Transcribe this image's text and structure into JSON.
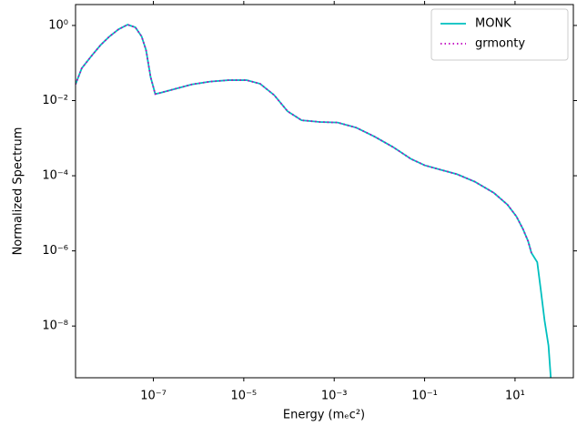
{
  "chart_data": {
    "type": "line",
    "xlabel": "Energy (mₑc²)",
    "ylabel": "Normalized Spectrum",
    "xscale": "log",
    "yscale": "log",
    "legend": "upper right",
    "xlim": [
      1.9e-09,
      195
    ],
    "ylim": [
      4.2e-10,
      3.6
    ],
    "xticks": [
      {
        "value": 1e-07,
        "label": "10⁻⁷"
      },
      {
        "value": 1e-05,
        "label": "10⁻⁵"
      },
      {
        "value": 0.001,
        "label": "10⁻³"
      },
      {
        "value": 0.1,
        "label": "10⁻¹"
      },
      {
        "value": 10,
        "label": "10¹"
      }
    ],
    "yticks": [
      {
        "value": 1,
        "label": "10⁰"
      },
      {
        "value": 0.01,
        "label": "10⁻²"
      },
      {
        "value": 0.0001,
        "label": "10⁻⁴"
      },
      {
        "value": 1e-06,
        "label": "10⁻⁶"
      },
      {
        "value": 1e-08,
        "label": "10⁻⁸"
      }
    ],
    "x": [
      1.9e-09,
      2.6e-09,
      4.2e-09,
      6.8e-09,
      1.07e-08,
      1.7e-08,
      2.7e-08,
      4e-08,
      5.5e-08,
      6.9e-08,
      8.7e-08,
      1.1e-07,
      1.4e-07,
      2.8e-07,
      7.1e-07,
      1.8e-06,
      4.6e-06,
      1.15e-05,
      2.3e-05,
      4.7e-05,
      9.3e-05,
      0.00019,
      0.00048,
      0.0012,
      0.0031,
      0.0078,
      0.02,
      0.05,
      0.1,
      0.2,
      0.52,
      1.3,
      3.4,
      6.8,
      10.7,
      15,
      19.5,
      23,
      31,
      37,
      45,
      55,
      63
    ],
    "series": [
      {
        "name": "MONK",
        "color": "#00bfbf",
        "style": "solid",
        "values": [
          0.027,
          0.072,
          0.15,
          0.3,
          0.51,
          0.79,
          1.05,
          0.89,
          0.51,
          0.22,
          0.042,
          0.015,
          0.016,
          0.02,
          0.027,
          0.032,
          0.035,
          0.035,
          0.028,
          0.014,
          0.0052,
          0.003,
          0.0027,
          0.0026,
          0.0019,
          0.0011,
          0.00058,
          0.00028,
          0.00019,
          0.00015,
          0.00011,
          6.9e-05,
          3.5e-05,
          1.7e-05,
          8.3e-06,
          3.8e-06,
          1.8e-06,
          8.9e-07,
          5e-07,
          9.5e-08,
          1.4e-08,
          3e-09,
          3e-10
        ]
      },
      {
        "name": "grmonty",
        "color": "#bf00bf",
        "style": "dotted",
        "values": [
          0.027,
          0.072,
          0.15,
          0.3,
          0.51,
          0.79,
          1.05,
          0.89,
          0.51,
          0.22,
          0.042,
          0.015,
          0.016,
          0.02,
          0.027,
          0.032,
          0.035,
          0.035,
          0.028,
          0.014,
          0.0052,
          0.003,
          0.0027,
          0.0026,
          0.0019,
          0.0011,
          0.00058,
          0.00028,
          0.00019,
          0.00015,
          0.00011,
          6.9e-05,
          3.5e-05,
          1.7e-05,
          8.3e-06,
          3.8e-06,
          1.8e-06,
          8.9e-07,
          null,
          null,
          null,
          null,
          null
        ]
      }
    ]
  }
}
